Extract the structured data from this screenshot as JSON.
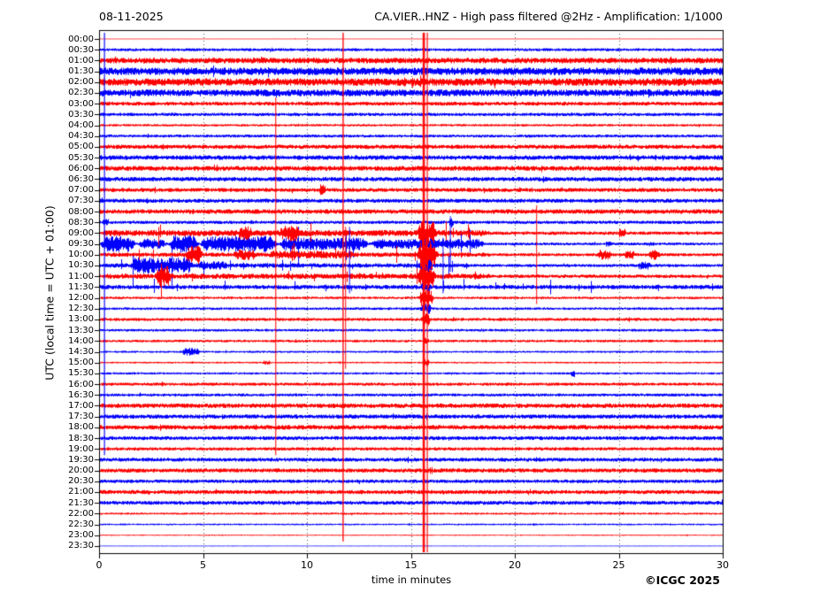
{
  "header": {
    "date": "08-11-2025",
    "title": "CA.VIER..HNZ - High pass filtered @2Hz - Amplification: 1/1000"
  },
  "footer": {
    "copyright": "©ICGC 2025"
  },
  "chart_data": {
    "type": "line",
    "subtype": "helicorder-dayplot",
    "title": "CA.VIER..HNZ - High pass filtered @2Hz - Amplification: 1/1000",
    "date": "08-11-2025",
    "xlabel": "time in minutes",
    "ylabel": "UTC (local time = UTC + 01:00)",
    "x_range": [
      0,
      30
    ],
    "x_ticks": [
      0,
      5,
      10,
      15,
      20,
      25,
      30
    ],
    "grid_x_minutes": [
      5,
      10,
      15,
      20,
      25
    ],
    "grid_style": "dotted",
    "legend_position": "none",
    "minutes_per_row": 30,
    "noise_seed": 42,
    "colors": {
      "trace_hour": "#ff0000",
      "trace_halfhour": "#0000ff",
      "axis": "#000000",
      "grid": "#555555",
      "background": "#ffffff"
    },
    "rows": [
      {
        "label": "00:00",
        "color": "#ff0000",
        "noise_amp": 0.4
      },
      {
        "label": "00:30",
        "color": "#0000ff",
        "noise_amp": 1.7
      },
      {
        "label": "01:00",
        "color": "#ff0000",
        "noise_amp": 3.2
      },
      {
        "label": "01:30",
        "color": "#0000ff",
        "noise_amp": 4.3
      },
      {
        "label": "02:00",
        "color": "#ff0000",
        "noise_amp": 4.3
      },
      {
        "label": "02:30",
        "color": "#0000ff",
        "noise_amp": 3.9
      },
      {
        "label": "03:00",
        "color": "#ff0000",
        "noise_amp": 2.2
      },
      {
        "label": "03:30",
        "color": "#0000ff",
        "noise_amp": 1.9
      },
      {
        "label": "04:00",
        "color": "#ff0000",
        "noise_amp": 1.4
      },
      {
        "label": "04:30",
        "color": "#0000ff",
        "noise_amp": 1.7
      },
      {
        "label": "05:00",
        "color": "#ff0000",
        "noise_amp": 2.4
      },
      {
        "label": "05:30",
        "color": "#0000ff",
        "noise_amp": 2.6
      },
      {
        "label": "06:00",
        "color": "#ff0000",
        "noise_amp": 2.8
      },
      {
        "label": "06:30",
        "color": "#0000ff",
        "noise_amp": 2.5
      },
      {
        "label": "07:00",
        "color": "#ff0000",
        "noise_amp": 2.3
      },
      {
        "label": "07:30",
        "color": "#0000ff",
        "noise_amp": 2.3
      },
      {
        "label": "08:00",
        "color": "#ff0000",
        "noise_amp": 2.6
      },
      {
        "label": "08:30",
        "color": "#0000ff",
        "noise_amp": 1.9
      },
      {
        "label": "09:00",
        "color": "#ff0000",
        "noise_amp": 2.0
      },
      {
        "label": "09:30",
        "color": "#0000ff",
        "noise_amp": 1.6
      },
      {
        "label": "10:00",
        "color": "#ff0000",
        "noise_amp": 1.8
      },
      {
        "label": "10:30",
        "color": "#0000ff",
        "noise_amp": 1.8
      },
      {
        "label": "11:00",
        "color": "#ff0000",
        "noise_amp": 2.0
      },
      {
        "label": "11:30",
        "color": "#0000ff",
        "noise_amp": 2.4
      },
      {
        "label": "12:00",
        "color": "#ff0000",
        "noise_amp": 1.5
      },
      {
        "label": "12:30",
        "color": "#0000ff",
        "noise_amp": 1.5
      },
      {
        "label": "13:00",
        "color": "#ff0000",
        "noise_amp": 1.8
      },
      {
        "label": "13:30",
        "color": "#0000ff",
        "noise_amp": 1.5
      },
      {
        "label": "14:00",
        "color": "#ff0000",
        "noise_amp": 1.5
      },
      {
        "label": "14:30",
        "color": "#0000ff",
        "noise_amp": 1.2
      },
      {
        "label": "15:00",
        "color": "#ff0000",
        "noise_amp": 1.0
      },
      {
        "label": "15:30",
        "color": "#0000ff",
        "noise_amp": 1.3
      },
      {
        "label": "16:00",
        "color": "#ff0000",
        "noise_amp": 1.8
      },
      {
        "label": "16:30",
        "color": "#0000ff",
        "noise_amp": 1.7
      },
      {
        "label": "17:00",
        "color": "#ff0000",
        "noise_amp": 2.6
      },
      {
        "label": "17:30",
        "color": "#0000ff",
        "noise_amp": 2.4
      },
      {
        "label": "18:00",
        "color": "#ff0000",
        "noise_amp": 2.6
      },
      {
        "label": "18:30",
        "color": "#0000ff",
        "noise_amp": 2.2
      },
      {
        "label": "19:00",
        "color": "#ff0000",
        "noise_amp": 1.9
      },
      {
        "label": "19:30",
        "color": "#0000ff",
        "noise_amp": 2.2
      },
      {
        "label": "20:00",
        "color": "#ff0000",
        "noise_amp": 2.4
      },
      {
        "label": "20:30",
        "color": "#0000ff",
        "noise_amp": 2.0
      },
      {
        "label": "21:00",
        "color": "#ff0000",
        "noise_amp": 2.3
      },
      {
        "label": "21:30",
        "color": "#0000ff",
        "noise_amp": 2.2
      },
      {
        "label": "22:00",
        "color": "#ff0000",
        "noise_amp": 1.2
      },
      {
        "label": "22:30",
        "color": "#0000ff",
        "noise_amp": 1.0
      },
      {
        "label": "23:00",
        "color": "#ff0000",
        "noise_amp": 0.7
      },
      {
        "label": "23:30",
        "color": "#0000ff",
        "noise_amp": 0.5
      }
    ],
    "events": [
      {
        "row": 14,
        "t0": 10.55,
        "t1": 10.9,
        "amp": 8,
        "spiky": false
      },
      {
        "row": 17,
        "t0": 0.1,
        "t1": 0.5,
        "amp": 4,
        "spiky": false
      },
      {
        "row": 17,
        "t0": 16.8,
        "t1": 17.05,
        "amp": 6,
        "spiky": false
      },
      {
        "row": 18,
        "t0": 0,
        "t1": 19,
        "amp": 3.5,
        "spiky": true
      },
      {
        "row": 18,
        "t0": 6.6,
        "t1": 7.4,
        "amp": 8,
        "spiky": false
      },
      {
        "row": 18,
        "t0": 8.6,
        "t1": 9.7,
        "amp": 10,
        "spiky": false
      },
      {
        "row": 18,
        "t0": 24.9,
        "t1": 25.4,
        "amp": 5,
        "spiky": false
      },
      {
        "row": 18,
        "t0": 15.25,
        "t1": 16.3,
        "amp": 14,
        "spiky": false
      },
      {
        "row": 19,
        "t0": 0,
        "t1": 1.8,
        "amp": 9,
        "spiky": true
      },
      {
        "row": 19,
        "t0": 1.8,
        "t1": 3.3,
        "amp": 6,
        "spiky": true
      },
      {
        "row": 19,
        "t0": 3.3,
        "t1": 4.8,
        "amp": 11,
        "spiky": true
      },
      {
        "row": 19,
        "t0": 4.8,
        "t1": 8.6,
        "amp": 9,
        "spiky": true
      },
      {
        "row": 19,
        "t0": 8.6,
        "t1": 13,
        "amp": 7,
        "spiky": true
      },
      {
        "row": 19,
        "t0": 13,
        "t1": 18.6,
        "amp": 5.5,
        "spiky": true
      },
      {
        "row": 19,
        "t0": 15.3,
        "t1": 16.2,
        "amp": 12,
        "spiky": false
      },
      {
        "row": 19,
        "t0": 24.3,
        "t1": 24.7,
        "amp": 3,
        "spiky": false
      },
      {
        "row": 19,
        "t0": 26.3,
        "t1": 26.7,
        "amp": 3,
        "spiky": false
      },
      {
        "row": 20,
        "t0": 0,
        "t1": 19,
        "amp": 2.5,
        "spiky": true
      },
      {
        "row": 20,
        "t0": 4.1,
        "t1": 5,
        "amp": 11,
        "spiky": false
      },
      {
        "row": 20,
        "t0": 6.3,
        "t1": 7.7,
        "amp": 6,
        "spiky": false
      },
      {
        "row": 20,
        "t0": 8,
        "t1": 12.5,
        "amp": 4.5,
        "spiky": true
      },
      {
        "row": 20,
        "t0": 23.9,
        "t1": 24.7,
        "amp": 6,
        "spiky": false
      },
      {
        "row": 20,
        "t0": 25.2,
        "t1": 25.8,
        "amp": 5,
        "spiky": false
      },
      {
        "row": 20,
        "t0": 26.4,
        "t1": 27,
        "amp": 6,
        "spiky": false
      },
      {
        "row": 20,
        "t0": 15.25,
        "t1": 16.3,
        "amp": 16,
        "spiky": false
      },
      {
        "row": 21,
        "t0": 0,
        "t1": 18,
        "amp": 2.5,
        "spiky": true
      },
      {
        "row": 21,
        "t0": 1.4,
        "t1": 4.6,
        "amp": 9,
        "spiky": true
      },
      {
        "row": 21,
        "t0": 4.6,
        "t1": 6.3,
        "amp": 5,
        "spiky": false
      },
      {
        "row": 21,
        "t0": 25.8,
        "t1": 26.6,
        "amp": 5,
        "spiky": false
      },
      {
        "row": 21,
        "t0": 15.3,
        "t1": 16.1,
        "amp": 10,
        "spiky": false
      },
      {
        "row": 22,
        "t0": 0,
        "t1": 19,
        "amp": 3,
        "spiky": true
      },
      {
        "row": 22,
        "t0": 2.7,
        "t1": 3.5,
        "amp": 12,
        "spiky": false
      },
      {
        "row": 22,
        "t0": 15.25,
        "t1": 16.2,
        "amp": 14,
        "spiky": false
      },
      {
        "row": 23,
        "t0": 0,
        "t1": 30,
        "amp": 1.2,
        "spiky": true
      },
      {
        "row": 23,
        "t0": 15.4,
        "t1": 16,
        "amp": 6,
        "spiky": false
      },
      {
        "row": 24,
        "t0": 15.35,
        "t1": 16.1,
        "amp": 10,
        "spiky": false
      },
      {
        "row": 25,
        "t0": 15.4,
        "t1": 16,
        "amp": 6,
        "spiky": false
      },
      {
        "row": 26,
        "t0": 15.45,
        "t1": 15.95,
        "amp": 7,
        "spiky": false
      },
      {
        "row": 28,
        "t0": 15.5,
        "t1": 15.9,
        "amp": 4,
        "spiky": false
      },
      {
        "row": 29,
        "t0": 3.9,
        "t1": 4.9,
        "amp": 4.5,
        "spiky": false
      },
      {
        "row": 30,
        "t0": 7.8,
        "t1": 8.3,
        "amp": 2.5,
        "spiky": false
      },
      {
        "row": 30,
        "t0": 15.5,
        "t1": 15.9,
        "amp": 4,
        "spiky": false
      },
      {
        "row": 31,
        "t0": 22.65,
        "t1": 22.9,
        "amp": 4.5,
        "spiky": false
      }
    ],
    "vlines": [
      {
        "t": 0.26,
        "color": "#0000ff",
        "r0": 0,
        "r1": 38,
        "w": 1.2
      },
      {
        "t": 8.5,
        "color": "#ff0000",
        "r0": 6,
        "r1": 38,
        "w": 1.1
      },
      {
        "t": 11.74,
        "color": "#ff0000",
        "r0": 0,
        "r1": 46,
        "w": 1.4
      },
      {
        "t": 11.86,
        "color": "#ff0000",
        "r0": 18,
        "r1": 30,
        "w": 1.0
      },
      {
        "t": 21.05,
        "color": "#ff0000",
        "r0": 16,
        "r1": 24,
        "w": 1.0
      },
      {
        "t": 12.05,
        "color": "#0000ff",
        "r0": 18,
        "r1": 23,
        "w": 1.0
      },
      {
        "t": 16.55,
        "color": "#0000ff",
        "r0": 19,
        "r1": 23,
        "w": 1.0
      },
      {
        "t": 16.9,
        "color": "#0000ff",
        "r0": 17,
        "r1": 21,
        "w": 1.0
      },
      {
        "t": 15.62,
        "color": "#ff0000",
        "r0": 0,
        "r1": 47,
        "w": 2.6
      },
      {
        "t": 15.79,
        "color": "#ff0000",
        "r0": 0,
        "r1": 47,
        "w": 1.2
      }
    ]
  }
}
